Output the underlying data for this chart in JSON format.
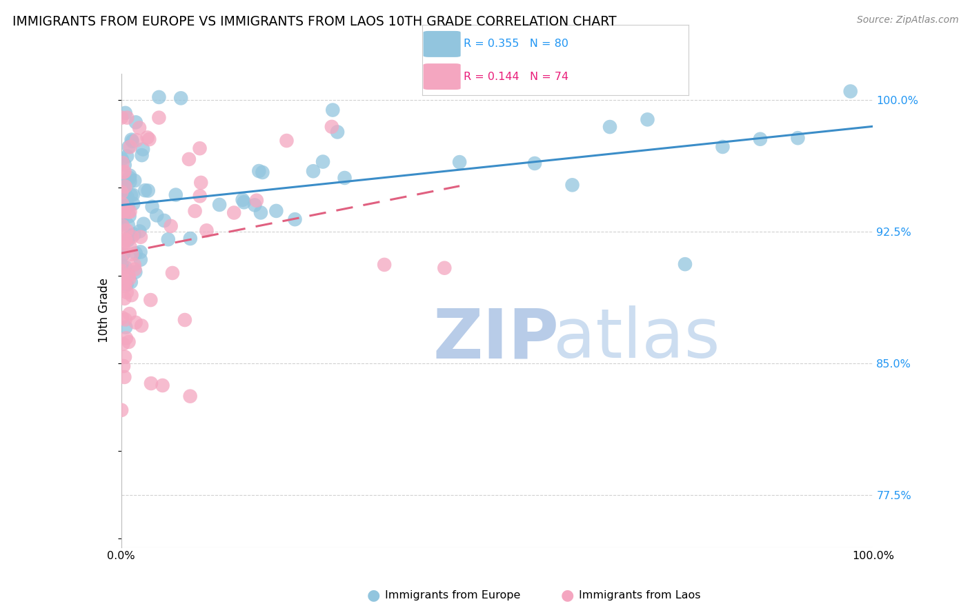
{
  "title": "IMMIGRANTS FROM EUROPE VS IMMIGRANTS FROM LAOS 10TH GRADE CORRELATION CHART",
  "source": "Source: ZipAtlas.com",
  "ylabel": "10th Grade",
  "yticks": [
    0.775,
    0.85,
    0.925,
    1.0
  ],
  "ytick_labels": [
    "77.5%",
    "85.0%",
    "92.5%",
    "100.0%"
  ],
  "legend_eu_text": "R = 0.355   N = 80",
  "legend_la_text": "R = 0.144   N = 74",
  "legend_label_europe": "Immigrants from Europe",
  "legend_label_laos": "Immigrants from Laos",
  "blue_dot_color": "#92c5de",
  "pink_dot_color": "#f4a6c0",
  "blue_line_color": "#3b8dc8",
  "pink_line_color": "#e06080",
  "blue_label_color": "#2196F3",
  "pink_label_color": "#E91E7A",
  "watermark_zip_color": "#ccd8ee",
  "watermark_atlas_color": "#d8e4f4",
  "grid_color": "#d0d0d0",
  "R_europe": 0.355,
  "N_europe": 80,
  "R_laos": 0.144,
  "N_laos": 74,
  "ylim_min": 0.745,
  "ylim_max": 1.015,
  "xlim_min": 0.0,
  "xlim_max": 1.0
}
